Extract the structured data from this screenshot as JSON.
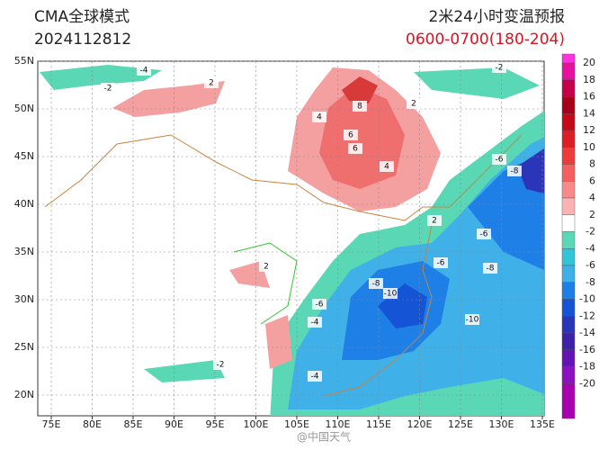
{
  "header": {
    "product": "CMA全球模式",
    "issue_time": "2024112812",
    "title": "2米24小时变温预报",
    "period": "0600-0700(180-204)"
  },
  "map": {
    "lon_labels": [
      "75E",
      "80E",
      "85E",
      "90E",
      "95E",
      "100E",
      "105E",
      "110E",
      "115E",
      "120E",
      "125E",
      "130E",
      "135E"
    ],
    "lat_labels": [
      "55N",
      "50N",
      "45N",
      "40N",
      "35N",
      "30N",
      "25N",
      "20N"
    ],
    "contour_labels": [
      "-4",
      "-2",
      "2",
      "4",
      "6",
      "8",
      "6",
      "4",
      "2",
      "-2",
      "-4",
      "-6",
      "-8",
      "-10",
      "-6",
      "-8",
      "-6",
      "-8",
      "-10",
      "-4",
      "-2",
      "-6",
      "2",
      "2"
    ],
    "colorbar": {
      "levels": [
        20,
        18,
        16,
        14,
        12,
        10,
        8,
        6,
        4,
        2,
        -2,
        -4,
        -6,
        -8,
        -10,
        -12,
        -14,
        -16,
        -18,
        -20
      ],
      "colors": [
        "#ff33dd",
        "#e8109e",
        "#c4004a",
        "#a80018",
        "#c40a1a",
        "#dc1e26",
        "#ee3c3c",
        "#f46060",
        "#f88a8a",
        "#fbb2b2",
        "#ffffff",
        "#5ad8b5",
        "#33c4d8",
        "#3fb0e8",
        "#1e7fe6",
        "#1654d6",
        "#2a35b8",
        "#3c22a8",
        "#6414b4",
        "#8a10c0",
        "#a800b0"
      ]
    }
  },
  "watermark": "@中国天气"
}
